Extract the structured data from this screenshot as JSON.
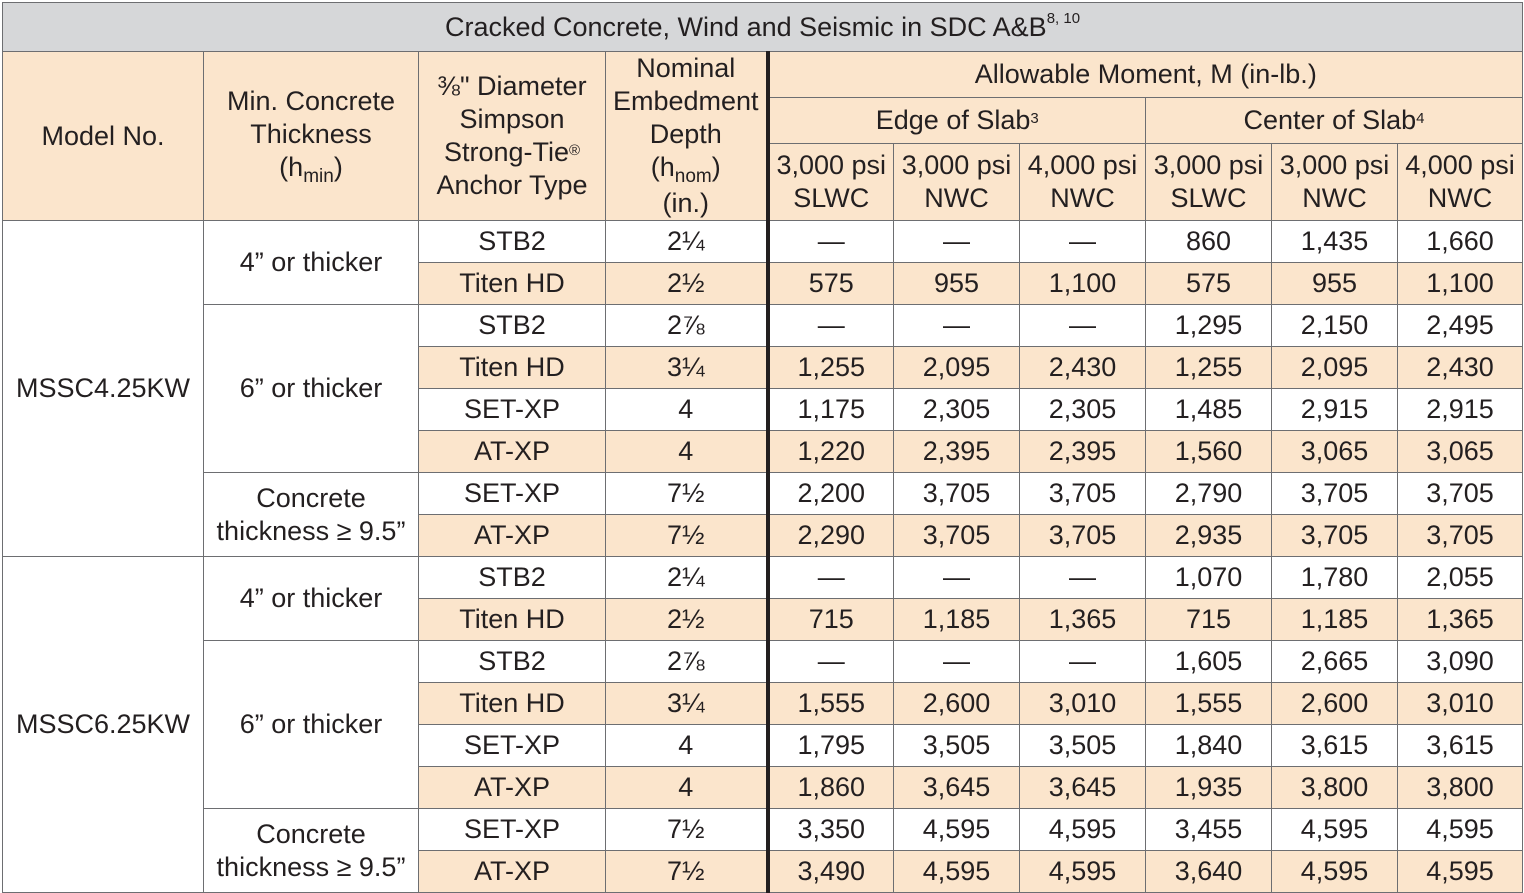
{
  "title": "Cracked Concrete, Wind and Seismic in SDC A&B",
  "title_notes": "8, 10",
  "headers": {
    "model": "Model No.",
    "thickness_line1": "Min. Concrete",
    "thickness_line2": "Thickness",
    "thickness_sym": "(h",
    "thickness_sub": "min",
    "thickness_close": ")",
    "anchor_line1": "⅜\" Diameter",
    "anchor_line2": "Simpson",
    "anchor_line3": "Strong-Tie",
    "anchor_reg": "®",
    "anchor_line4": "Anchor Type",
    "embed_line1": "Nominal",
    "embed_line2": "Embedment",
    "embed_line3": "Depth",
    "embed_sym": "(h",
    "embed_sub": "nom",
    "embed_close": ")",
    "embed_unit": "(in.)",
    "allowable": "Allowable Moment, M (in-lb.)",
    "edge": "Edge of Slab",
    "edge_note": "3",
    "center": "Center of Slab",
    "center_note": "4",
    "cols": [
      {
        "psi": "3,000 psi",
        "type": "SLWC"
      },
      {
        "psi": "3,000 psi",
        "type": "NWC"
      },
      {
        "psi": "4,000 psi",
        "type": "NWC"
      },
      {
        "psi": "3,000 psi",
        "type": "SLWC"
      },
      {
        "psi": "3,000 psi",
        "type": "NWC"
      },
      {
        "psi": "4,000 psi",
        "type": "NWC"
      }
    ]
  },
  "models": [
    {
      "name": "MSSC4.25KW",
      "groups": [
        {
          "thickness": "4” or thicker",
          "rows": [
            {
              "anchor": "STB2",
              "depth": "2¼",
              "values": [
                "—",
                "—",
                "—",
                "860",
                "1,435",
                "1,660"
              ]
            },
            {
              "anchor": "Titen HD",
              "depth": "2½",
              "values": [
                "575",
                "955",
                "1,100",
                "575",
                "955",
                "1,100"
              ]
            }
          ]
        },
        {
          "thickness": "6” or thicker",
          "rows": [
            {
              "anchor": "STB2",
              "depth": "2⅞",
              "values": [
                "—",
                "—",
                "—",
                "1,295",
                "2,150",
                "2,495"
              ]
            },
            {
              "anchor": "Titen HD",
              "depth": "3¼",
              "values": [
                "1,255",
                "2,095",
                "2,430",
                "1,255",
                "2,095",
                "2,430"
              ]
            },
            {
              "anchor": "SET-XP",
              "depth": "4",
              "values": [
                "1,175",
                "2,305",
                "2,305",
                "1,485",
                "2,915",
                "2,915"
              ]
            },
            {
              "anchor": "AT-XP",
              "depth": "4",
              "values": [
                "1,220",
                "2,395",
                "2,395",
                "1,560",
                "3,065",
                "3,065"
              ]
            }
          ]
        },
        {
          "thickness_line1": "Concrete",
          "thickness_line2": "thickness ≥ 9.5”",
          "rows": [
            {
              "anchor": "SET-XP",
              "depth": "7½",
              "values": [
                "2,200",
                "3,705",
                "3,705",
                "2,790",
                "3,705",
                "3,705"
              ]
            },
            {
              "anchor": "AT-XP",
              "depth": "7½",
              "values": [
                "2,290",
                "3,705",
                "3,705",
                "2,935",
                "3,705",
                "3,705"
              ]
            }
          ]
        }
      ]
    },
    {
      "name": "MSSC6.25KW",
      "groups": [
        {
          "thickness": "4” or thicker",
          "rows": [
            {
              "anchor": "STB2",
              "depth": "2¼",
              "values": [
                "—",
                "—",
                "—",
                "1,070",
                "1,780",
                "2,055"
              ]
            },
            {
              "anchor": "Titen HD",
              "depth": "2½",
              "values": [
                "715",
                "1,185",
                "1,365",
                "715",
                "1,185",
                "1,365"
              ]
            }
          ]
        },
        {
          "thickness": "6” or thicker",
          "rows": [
            {
              "anchor": "STB2",
              "depth": "2⅞",
              "values": [
                "—",
                "—",
                "—",
                "1,605",
                "2,665",
                "3,090"
              ]
            },
            {
              "anchor": "Titen HD",
              "depth": "3¼",
              "values": [
                "1,555",
                "2,600",
                "3,010",
                "1,555",
                "2,600",
                "3,010"
              ]
            },
            {
              "anchor": "SET-XP",
              "depth": "4",
              "values": [
                "1,795",
                "3,505",
                "3,505",
                "1,840",
                "3,615",
                "3,615"
              ]
            },
            {
              "anchor": "AT-XP",
              "depth": "4",
              "values": [
                "1,860",
                "3,645",
                "3,645",
                "1,935",
                "3,800",
                "3,800"
              ]
            }
          ]
        },
        {
          "thickness_line1": "Concrete",
          "thickness_line2": "thickness ≥ 9.5”",
          "rows": [
            {
              "anchor": "SET-XP",
              "depth": "7½",
              "values": [
                "3,350",
                "4,595",
                "4,595",
                "3,455",
                "4,595",
                "4,595"
              ]
            },
            {
              "anchor": "AT-XP",
              "depth": "7½",
              "values": [
                "3,490",
                "4,595",
                "4,595",
                "3,640",
                "4,595",
                "4,595"
              ]
            }
          ]
        }
      ]
    }
  ]
}
